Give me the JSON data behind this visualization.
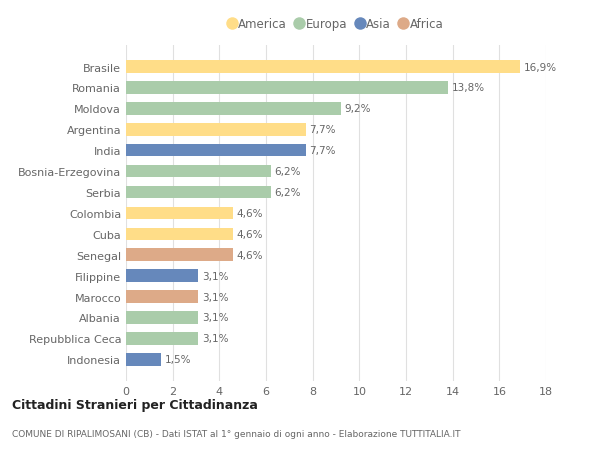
{
  "countries": [
    "Brasile",
    "Romania",
    "Moldova",
    "Argentina",
    "India",
    "Bosnia-Erzegovina",
    "Serbia",
    "Colombia",
    "Cuba",
    "Senegal",
    "Filippine",
    "Marocco",
    "Albania",
    "Repubblica Ceca",
    "Indonesia"
  ],
  "values": [
    16.9,
    13.8,
    9.2,
    7.7,
    7.7,
    6.2,
    6.2,
    4.6,
    4.6,
    4.6,
    3.1,
    3.1,
    3.1,
    3.1,
    1.5
  ],
  "labels": [
    "16,9%",
    "13,8%",
    "9,2%",
    "7,7%",
    "7,7%",
    "6,2%",
    "6,2%",
    "4,6%",
    "4,6%",
    "4,6%",
    "3,1%",
    "3,1%",
    "3,1%",
    "3,1%",
    "1,5%"
  ],
  "continents": [
    "America",
    "Europa",
    "Europa",
    "America",
    "Asia",
    "Europa",
    "Europa",
    "America",
    "America",
    "Africa",
    "Asia",
    "Africa",
    "Europa",
    "Europa",
    "Asia"
  ],
  "colors": {
    "America": "#FFDD88",
    "Europa": "#AACCAA",
    "Asia": "#6688BB",
    "Africa": "#DDAA88"
  },
  "legend_order": [
    "America",
    "Europa",
    "Asia",
    "Africa"
  ],
  "title": "Cittadini Stranieri per Cittadinanza",
  "subtitle": "COMUNE DI RIPALIMOSANI (CB) - Dati ISTAT al 1° gennaio di ogni anno - Elaborazione TUTTITALIA.IT",
  "xlim": [
    0,
    18
  ],
  "xticks": [
    0,
    2,
    4,
    6,
    8,
    10,
    12,
    14,
    16,
    18
  ],
  "background_color": "#ffffff",
  "grid_color": "#e0e0e0",
  "bar_height": 0.6,
  "label_color": "#666666",
  "title_fontsize": 9,
  "subtitle_fontsize": 6.5,
  "tick_fontsize": 8,
  "bar_label_fontsize": 7.5,
  "legend_fontsize": 8.5
}
